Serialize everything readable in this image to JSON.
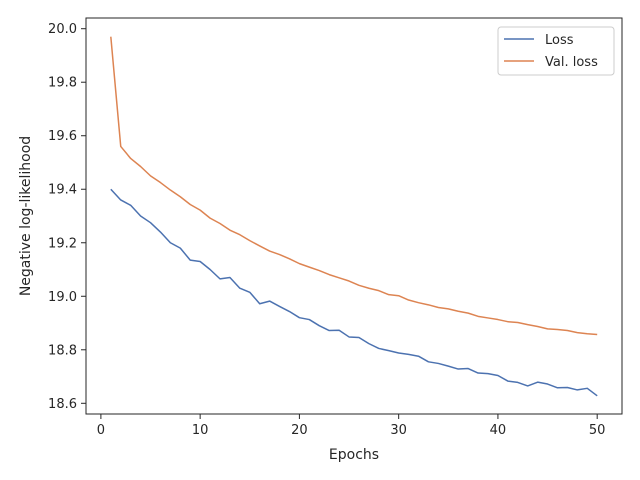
{
  "chart_data": {
    "type": "line",
    "title": "",
    "xlabel": "Epochs",
    "ylabel": "Negative log-likelihood",
    "xlim": [
      -1.5,
      52.5
    ],
    "ylim": [
      18.56,
      20.04
    ],
    "xticks": [
      0,
      10,
      20,
      30,
      40,
      50
    ],
    "yticks": [
      18.6,
      18.8,
      19.0,
      19.2,
      19.4,
      19.6,
      19.8,
      20.0
    ],
    "xtick_labels": [
      "0",
      "10",
      "20",
      "30",
      "40",
      "50"
    ],
    "ytick_labels": [
      "18.6",
      "18.8",
      "19.0",
      "19.2",
      "19.4",
      "19.6",
      "19.8",
      "20.0"
    ],
    "grid": false,
    "legend_position": "top-right",
    "x": [
      1,
      2,
      3,
      4,
      5,
      6,
      7,
      8,
      9,
      10,
      11,
      12,
      13,
      14,
      15,
      16,
      17,
      18,
      19,
      20,
      21,
      22,
      23,
      24,
      25,
      26,
      27,
      28,
      29,
      30,
      31,
      32,
      33,
      34,
      35,
      36,
      37,
      38,
      39,
      40,
      41,
      42,
      43,
      44,
      45,
      46,
      47,
      48,
      49,
      50
    ],
    "series": [
      {
        "name": "Loss",
        "color": "#4c72b0",
        "values": [
          19.4,
          19.36,
          19.34,
          19.3,
          19.275,
          19.24,
          19.2,
          19.18,
          19.135,
          19.13,
          19.1,
          19.065,
          19.07,
          19.03,
          19.015,
          18.972,
          18.982,
          18.962,
          18.943,
          18.92,
          18.913,
          18.89,
          18.872,
          18.873,
          18.848,
          18.846,
          18.823,
          18.805,
          18.797,
          18.788,
          18.783,
          18.776,
          18.755,
          18.749,
          18.739,
          18.728,
          18.73,
          18.713,
          18.711,
          18.704,
          18.683,
          18.678,
          18.665,
          18.679,
          18.672,
          18.658,
          18.659,
          18.65,
          18.656,
          18.628
        ]
      },
      {
        "name": "Val. loss",
        "color": "#dd8452",
        "values": [
          19.97,
          19.56,
          19.515,
          19.485,
          19.45,
          19.425,
          19.397,
          19.372,
          19.343,
          19.322,
          19.292,
          19.272,
          19.247,
          19.23,
          19.208,
          19.188,
          19.169,
          19.156,
          19.14,
          19.122,
          19.109,
          19.096,
          19.081,
          19.069,
          19.057,
          19.041,
          19.03,
          19.021,
          19.006,
          19.002,
          18.986,
          18.976,
          18.968,
          18.958,
          18.953,
          18.944,
          18.937,
          18.925,
          18.919,
          18.913,
          18.905,
          18.902,
          18.894,
          18.887,
          18.878,
          18.876,
          18.872,
          18.864,
          18.86,
          18.857
        ]
      }
    ]
  }
}
